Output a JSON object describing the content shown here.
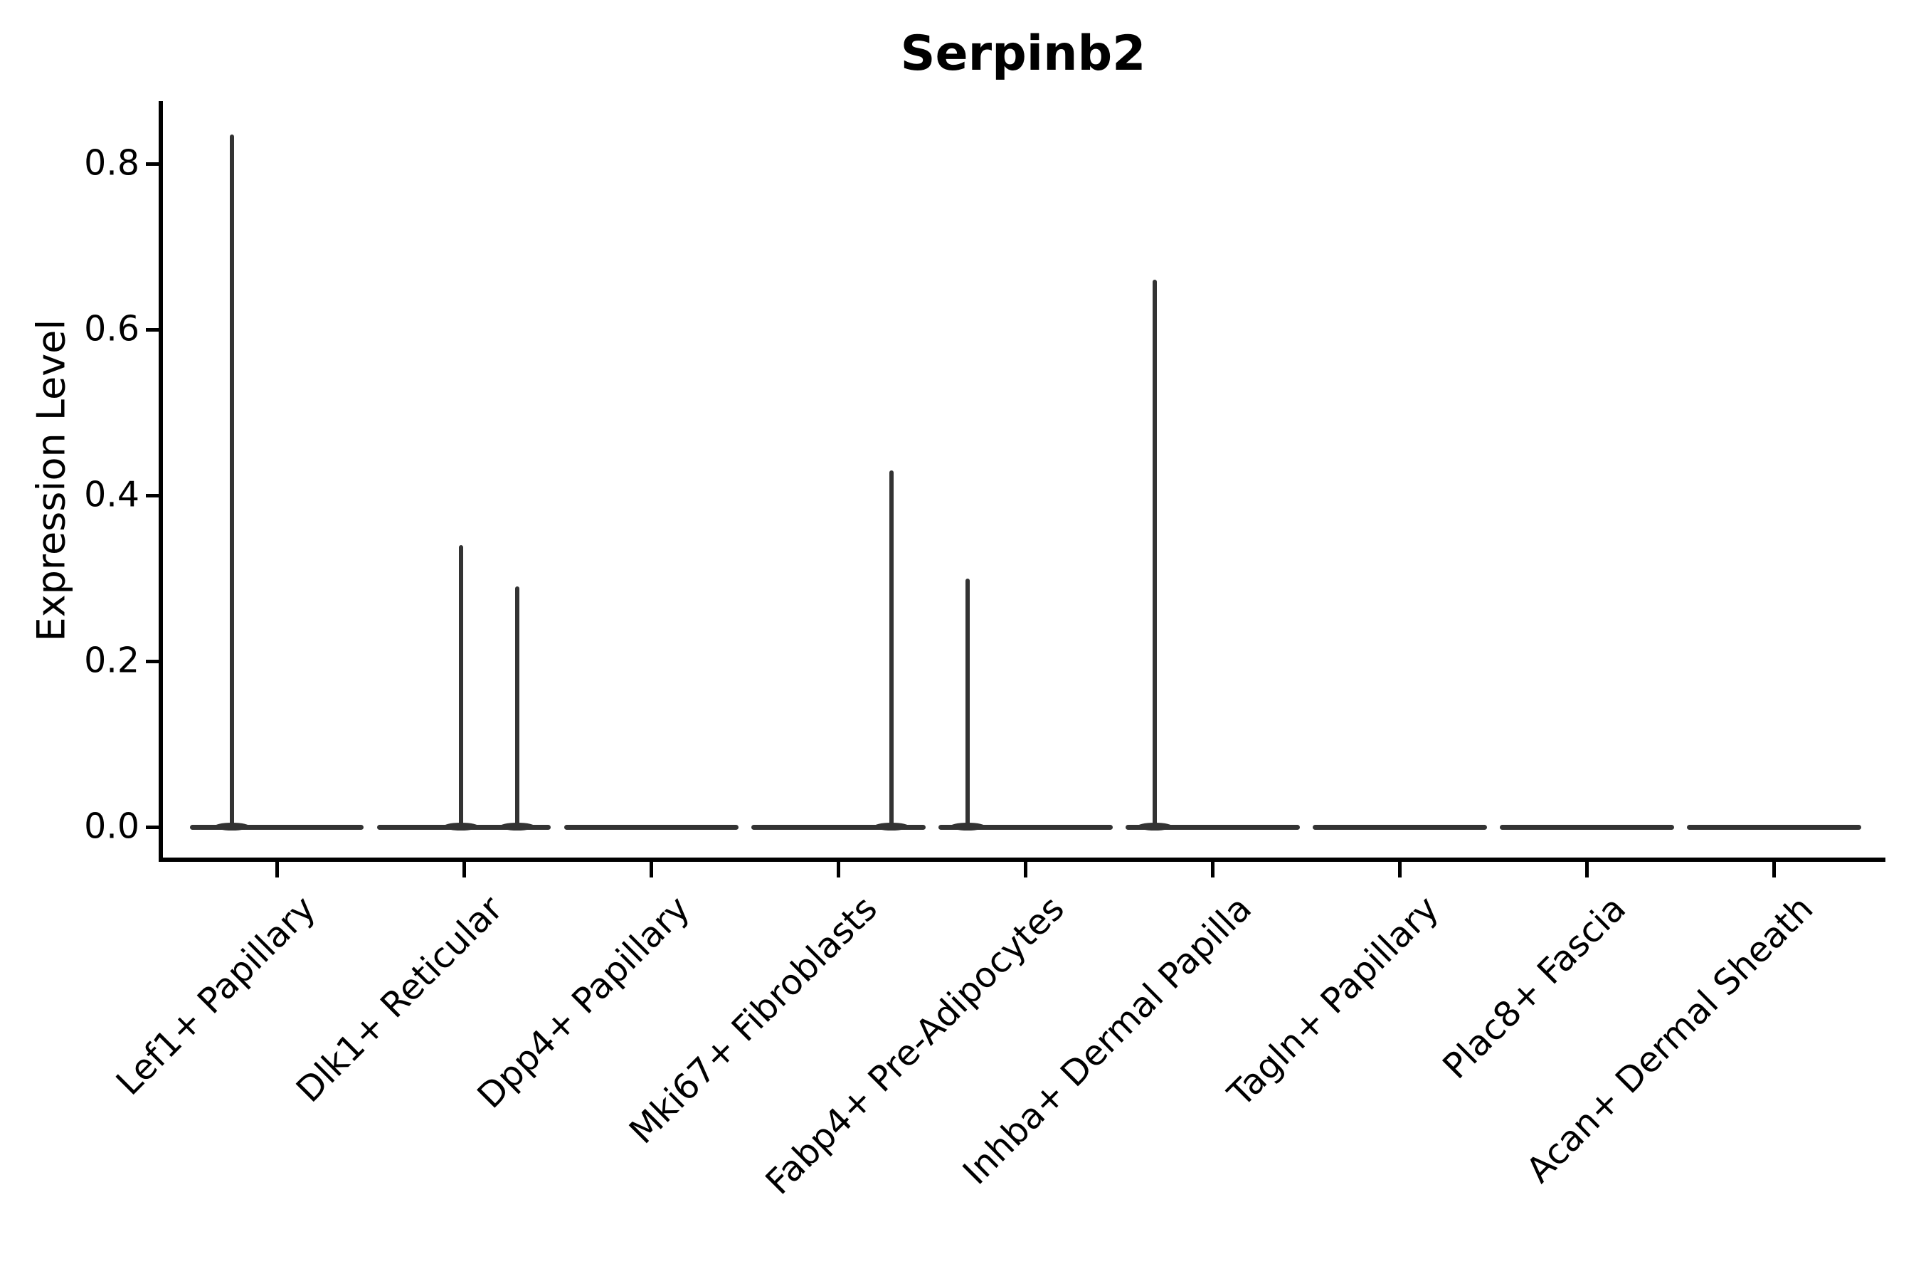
{
  "chart_data": {
    "type": "violin",
    "title": "Serpinb2",
    "xlabel": "",
    "ylabel": "Expression Level",
    "yticks": [
      0.0,
      0.2,
      0.4,
      0.6,
      0.8
    ],
    "ylim": [
      -0.04,
      0.875
    ],
    "grid": false,
    "legend": "none",
    "categories": [
      "Lef1+ Papillary",
      "Dlk1+ Reticular",
      "Dpp4+ Papillary",
      "Mki67+ Fibroblasts",
      "Fabp4+ Pre-Adipocytes",
      "Inhba+ Dermal Papilla",
      "Tagln+ Papillary",
      "Plac8+ Fascia",
      "Acan+ Dermal Sheath"
    ],
    "violins": [
      {
        "category": "Lef1+ Papillary",
        "body_value": 0.0,
        "half_width": 0.465,
        "spikes": [
          {
            "offset": -0.24,
            "max": 0.835
          }
        ]
      },
      {
        "category": "Dlk1+ Reticular",
        "body_value": 0.0,
        "half_width": 0.465,
        "spikes": [
          {
            "offset": -0.015,
            "max": 0.34
          },
          {
            "offset": 0.285,
            "max": 0.29
          }
        ]
      },
      {
        "category": "Dpp4+ Papillary",
        "body_value": 0.0,
        "half_width": 0.465,
        "spikes": []
      },
      {
        "category": "Mki67+ Fibroblasts",
        "body_value": 0.0,
        "half_width": 0.465,
        "spikes": [
          {
            "offset": 0.285,
            "max": 0.43
          }
        ]
      },
      {
        "category": "Fabp4+ Pre-Adipocytes",
        "body_value": 0.0,
        "half_width": 0.465,
        "spikes": [
          {
            "offset": -0.31,
            "max": 0.3
          }
        ]
      },
      {
        "category": "Inhba+ Dermal Papilla",
        "body_value": 0.0,
        "half_width": 0.465,
        "spikes": [
          {
            "offset": -0.31,
            "max": 0.66
          }
        ]
      },
      {
        "category": "Tagln+ Papillary",
        "body_value": 0.0,
        "half_width": 0.465,
        "spikes": []
      },
      {
        "category": "Plac8+ Fascia",
        "body_value": 0.0,
        "half_width": 0.465,
        "spikes": []
      },
      {
        "category": "Acan+ Dermal Sheath",
        "body_value": 0.0,
        "half_width": 0.465,
        "spikes": []
      }
    ],
    "colors": {
      "violin_line": "#333333",
      "axis": "#000000",
      "background": "#ffffff"
    }
  }
}
